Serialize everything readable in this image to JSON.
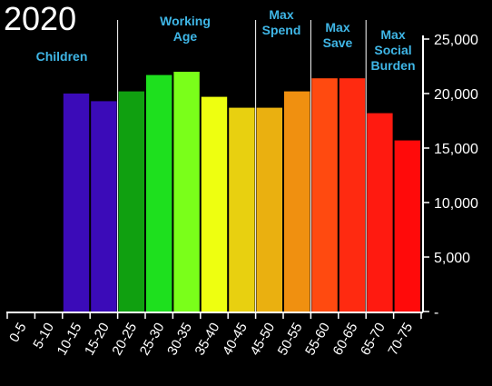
{
  "title": "2020",
  "colors": {
    "background": "#000000",
    "axis": "#ffffff",
    "band_label": "#3fb6e6"
  },
  "bands": [
    {
      "label": "Children"
    },
    {
      "label": "Working Age"
    },
    {
      "label": "Max Spend"
    },
    {
      "label": "Max Save"
    },
    {
      "label": "Max Social Burden"
    }
  ],
  "chart_data": {
    "type": "bar",
    "title": "2020",
    "categories": [
      "0-5",
      "5-10",
      "10-15",
      "15-20",
      "20-25",
      "25-30",
      "30-35",
      "35-40",
      "40-45",
      "45-50",
      "50-55",
      "55-60",
      "60-65",
      "65-70",
      "70-75"
    ],
    "values": [
      null,
      null,
      20000,
      19300,
      20200,
      21700,
      22000,
      19700,
      18700,
      18700,
      20200,
      21400,
      21400,
      18200,
      15700
    ],
    "colors": [
      "#000000",
      "#000000",
      "#3b0bb8",
      "#3b0bb8",
      "#10a010",
      "#1ee01e",
      "#7aff1a",
      "#eeff10",
      "#e8d010",
      "#eab010",
      "#f09010",
      "#ff4a10",
      "#ff2a10",
      "#ff1a10",
      "#ff0a0a"
    ],
    "ylim": [
      0,
      25000
    ],
    "yticks": [
      0,
      5000,
      10000,
      15000,
      20000,
      25000
    ],
    "ytick_labels": [
      "-",
      "5,000",
      "10,000",
      "15,000",
      "20,000",
      "25,000"
    ],
    "y_axis_position": "right",
    "grid": false
  }
}
